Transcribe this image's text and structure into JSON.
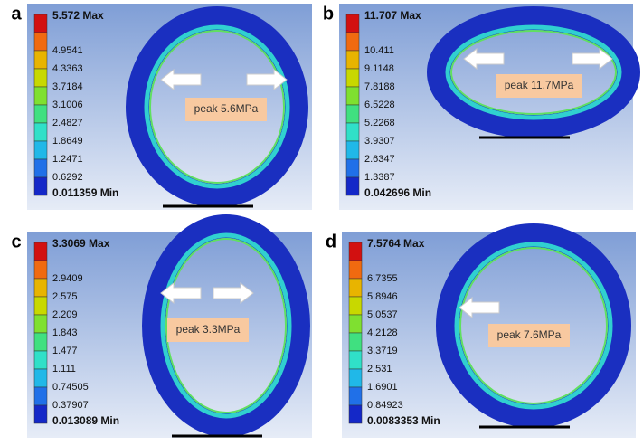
{
  "panels": [
    {
      "label": "a",
      "legend": [
        "5.572 Max",
        "4.9541",
        "4.3363",
        "3.7184",
        "3.1006",
        "2.4827",
        "1.8649",
        "1.2471",
        "0.6292",
        "0.011359 Min"
      ],
      "peak": "peak 5.6MPa"
    },
    {
      "label": "b",
      "legend": [
        "11.707 Max",
        "10.411",
        "9.1148",
        "7.8188",
        "6.5228",
        "5.2268",
        "3.9307",
        "2.6347",
        "1.3387",
        "0.042696 Min"
      ],
      "peak": "peak 11.7MPa"
    },
    {
      "label": "c",
      "legend": [
        "3.3069 Max",
        "2.9409",
        "2.575",
        "2.209",
        "1.843",
        "1.477",
        "1.111",
        "0.74505",
        "0.37907",
        "0.013089 Min"
      ],
      "peak": "peak 3.3MPa"
    },
    {
      "label": "d",
      "legend": [
        "7.5764 Max",
        "6.7355",
        "5.8946",
        "5.0537",
        "4.2128",
        "3.3719",
        "2.531",
        "1.6901",
        "0.84923",
        "0.0083353 Min"
      ],
      "peak": "peak 7.6MPa"
    }
  ]
}
